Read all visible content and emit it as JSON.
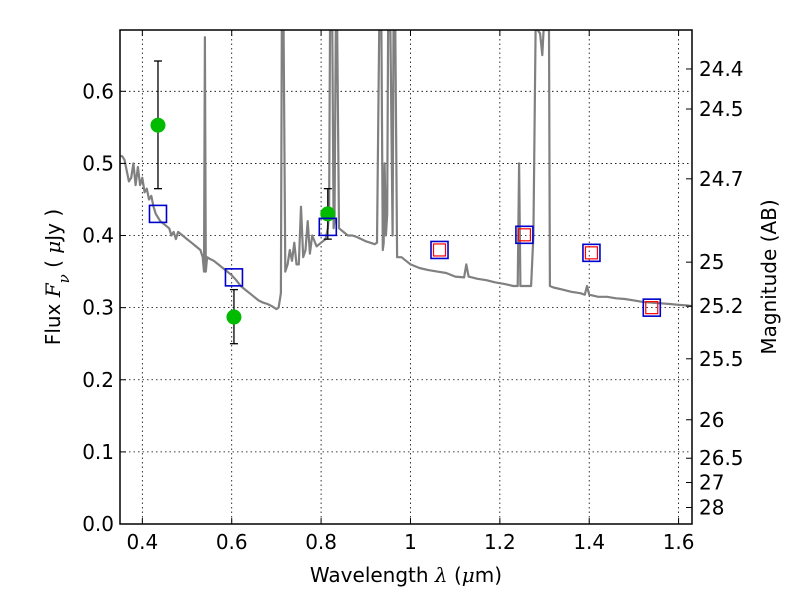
{
  "chart_data": {
    "type": "scatter",
    "title": "",
    "xlabel": "Wavelength  λ (μm)",
    "ylabel": "Flux  Fν  ( μJy )",
    "ylabel_right": "Magnitude (AB)",
    "xlim": [
      0.35,
      1.63
    ],
    "ylim": [
      0.0,
      0.685
    ],
    "grid": true,
    "x_ticks": [
      {
        "value": 0.4,
        "label": "0.4"
      },
      {
        "value": 0.6,
        "label": "0.6"
      },
      {
        "value": 0.8,
        "label": "0.8"
      },
      {
        "value": 1.0,
        "label": "1"
      },
      {
        "value": 1.2,
        "label": "1.2"
      },
      {
        "value": 1.4,
        "label": "1.4"
      },
      {
        "value": 1.6,
        "label": "1.6"
      }
    ],
    "y_ticks": [
      {
        "value": 0.0,
        "label": "0.0"
      },
      {
        "value": 0.1,
        "label": "0.1"
      },
      {
        "value": 0.2,
        "label": "0.2"
      },
      {
        "value": 0.3,
        "label": "0.3"
      },
      {
        "value": 0.4,
        "label": "0.4"
      },
      {
        "value": 0.5,
        "label": "0.5"
      },
      {
        "value": 0.6,
        "label": "0.6"
      }
    ],
    "mag_ticks": [
      {
        "value": 24.4,
        "label": "24.4"
      },
      {
        "value": 24.5,
        "label": "24.5"
      },
      {
        "value": 24.7,
        "label": "24.7"
      },
      {
        "value": 25.0,
        "label": "25"
      },
      {
        "value": 25.2,
        "label": "25.2"
      },
      {
        "value": 25.5,
        "label": "25.5"
      },
      {
        "value": 26.0,
        "label": "26"
      },
      {
        "value": 26.5,
        "label": "26.5"
      },
      {
        "value": 27.0,
        "label": "27"
      },
      {
        "value": 28.0,
        "label": "28"
      }
    ],
    "series": [
      {
        "kind": "line",
        "color": "#808080",
        "points": [
          [
            0.35,
            0.51
          ],
          [
            0.355,
            0.51
          ],
          [
            0.36,
            0.505
          ],
          [
            0.365,
            0.49
          ],
          [
            0.37,
            0.475
          ],
          [
            0.375,
            0.48
          ],
          [
            0.38,
            0.5
          ],
          [
            0.385,
            0.47
          ],
          [
            0.39,
            0.495
          ],
          [
            0.395,
            0.47
          ],
          [
            0.4,
            0.48
          ],
          [
            0.405,
            0.46
          ],
          [
            0.41,
            0.465
          ],
          [
            0.415,
            0.45
          ],
          [
            0.42,
            0.455
          ],
          [
            0.425,
            0.44
          ],
          [
            0.43,
            0.43
          ],
          [
            0.44,
            0.42
          ],
          [
            0.45,
            0.415
          ],
          [
            0.46,
            0.41
          ],
          [
            0.465,
            0.4
          ],
          [
            0.47,
            0.405
          ],
          [
            0.475,
            0.395
          ],
          [
            0.48,
            0.405
          ],
          [
            0.49,
            0.4
          ],
          [
            0.5,
            0.395
          ],
          [
            0.51,
            0.39
          ],
          [
            0.52,
            0.385
          ],
          [
            0.53,
            0.38
          ],
          [
            0.535,
            0.37
          ],
          [
            0.538,
            0.35
          ],
          [
            0.54,
            0.675
          ],
          [
            0.542,
            0.35
          ],
          [
            0.545,
            0.37
          ],
          [
            0.55,
            0.368
          ],
          [
            0.56,
            0.365
          ],
          [
            0.57,
            0.36
          ],
          [
            0.58,
            0.355
          ],
          [
            0.59,
            0.35
          ],
          [
            0.6,
            0.345
          ],
          [
            0.61,
            0.338
          ],
          [
            0.62,
            0.33
          ],
          [
            0.63,
            0.325
          ],
          [
            0.64,
            0.32
          ],
          [
            0.65,
            0.315
          ],
          [
            0.66,
            0.31
          ],
          [
            0.67,
            0.307
          ],
          [
            0.68,
            0.305
          ],
          [
            0.69,
            0.302
          ],
          [
            0.7,
            0.298
          ],
          [
            0.705,
            0.3
          ],
          [
            0.71,
            0.32
          ],
          [
            0.712,
            0.685
          ],
          [
            0.716,
            0.685
          ],
          [
            0.72,
            0.35
          ],
          [
            0.725,
            0.36
          ],
          [
            0.73,
            0.38
          ],
          [
            0.735,
            0.365
          ],
          [
            0.74,
            0.39
          ],
          [
            0.745,
            0.36
          ],
          [
            0.75,
            0.36
          ],
          [
            0.755,
            0.44
          ],
          [
            0.76,
            0.37
          ],
          [
            0.765,
            0.38
          ],
          [
            0.77,
            0.42
          ],
          [
            0.775,
            0.375
          ],
          [
            0.78,
            0.4
          ],
          [
            0.79,
            0.385
          ],
          [
            0.8,
            0.39
          ],
          [
            0.81,
            0.395
          ],
          [
            0.815,
            0.41
          ],
          [
            0.818,
            0.43
          ],
          [
            0.82,
            0.685
          ],
          [
            0.825,
            0.685
          ],
          [
            0.828,
            0.41
          ],
          [
            0.83,
            0.42
          ],
          [
            0.833,
            0.685
          ],
          [
            0.836,
            0.685
          ],
          [
            0.84,
            0.41
          ],
          [
            0.85,
            0.405
          ],
          [
            0.86,
            0.4
          ],
          [
            0.87,
            0.4
          ],
          [
            0.88,
            0.398
          ],
          [
            0.89,
            0.395
          ],
          [
            0.9,
            0.392
          ],
          [
            0.91,
            0.39
          ],
          [
            0.92,
            0.388
          ],
          [
            0.925,
            0.39
          ],
          [
            0.93,
            0.685
          ],
          [
            0.935,
            0.685
          ],
          [
            0.938,
            0.38
          ],
          [
            0.94,
            0.39
          ],
          [
            0.942,
            0.5
          ],
          [
            0.945,
            0.4
          ],
          [
            0.948,
            0.43
          ],
          [
            0.95,
            0.685
          ],
          [
            0.955,
            0.685
          ],
          [
            0.96,
            0.4
          ],
          [
            0.962,
            0.685
          ],
          [
            0.966,
            0.685
          ],
          [
            0.97,
            0.37
          ],
          [
            0.98,
            0.37
          ],
          [
            0.99,
            0.365
          ],
          [
            1.0,
            0.36
          ],
          [
            1.02,
            0.355
          ],
          [
            1.04,
            0.352
          ],
          [
            1.06,
            0.35
          ],
          [
            1.08,
            0.348
          ],
          [
            1.1,
            0.343
          ],
          [
            1.12,
            0.342
          ],
          [
            1.125,
            0.36
          ],
          [
            1.13,
            0.343
          ],
          [
            1.15,
            0.34
          ],
          [
            1.17,
            0.338
          ],
          [
            1.19,
            0.335
          ],
          [
            1.21,
            0.333
          ],
          [
            1.23,
            0.33
          ],
          [
            1.24,
            0.33
          ],
          [
            1.243,
            0.5
          ],
          [
            1.246,
            0.33
          ],
          [
            1.25,
            0.33
          ],
          [
            1.26,
            0.33
          ],
          [
            1.27,
            0.33
          ],
          [
            1.275,
            0.4
          ],
          [
            1.28,
            0.685
          ],
          [
            1.285,
            0.685
          ],
          [
            1.29,
            0.68
          ],
          [
            1.295,
            0.65
          ],
          [
            1.298,
            0.685
          ],
          [
            1.3,
            0.685
          ],
          [
            1.305,
            0.685
          ],
          [
            1.31,
            0.685
          ],
          [
            1.312,
            0.33
          ],
          [
            1.32,
            0.328
          ],
          [
            1.34,
            0.325
          ],
          [
            1.36,
            0.322
          ],
          [
            1.38,
            0.32
          ],
          [
            1.39,
            0.318
          ],
          [
            1.395,
            0.33
          ],
          [
            1.4,
            0.318
          ],
          [
            1.42,
            0.315
          ],
          [
            1.44,
            0.315
          ],
          [
            1.46,
            0.313
          ],
          [
            1.48,
            0.312
          ],
          [
            1.5,
            0.31
          ],
          [
            1.52,
            0.308
          ],
          [
            1.54,
            0.307
          ],
          [
            1.56,
            0.306
          ],
          [
            1.58,
            0.305
          ],
          [
            1.6,
            0.304
          ],
          [
            1.62,
            0.303
          ],
          [
            1.63,
            0.302
          ]
        ]
      },
      {
        "kind": "observed",
        "color": "#00bb00",
        "points": [
          {
            "x": 0.435,
            "y": 0.553,
            "ylo": 0.465,
            "yhi": 0.642
          },
          {
            "x": 0.605,
            "y": 0.287,
            "ylo": 0.25,
            "yhi": 0.325
          },
          {
            "x": 0.815,
            "y": 0.43,
            "ylo": 0.395,
            "yhi": 0.465
          }
        ]
      },
      {
        "kind": "model_bands",
        "color": "#0000cc",
        "points": [
          {
            "x": 0.435,
            "y": 0.43
          },
          {
            "x": 0.605,
            "y": 0.342
          },
          {
            "x": 0.815,
            "y": 0.412
          },
          {
            "x": 1.065,
            "y": 0.38
          },
          {
            "x": 1.255,
            "y": 0.401
          },
          {
            "x": 1.405,
            "y": 0.376
          },
          {
            "x": 1.54,
            "y": 0.3
          }
        ]
      },
      {
        "kind": "model_bands_inner",
        "color": "#ff0000",
        "points": [
          {
            "x": 1.065,
            "y": 0.38
          },
          {
            "x": 1.255,
            "y": 0.401
          },
          {
            "x": 1.405,
            "y": 0.376
          },
          {
            "x": 1.54,
            "y": 0.3
          }
        ]
      }
    ]
  }
}
